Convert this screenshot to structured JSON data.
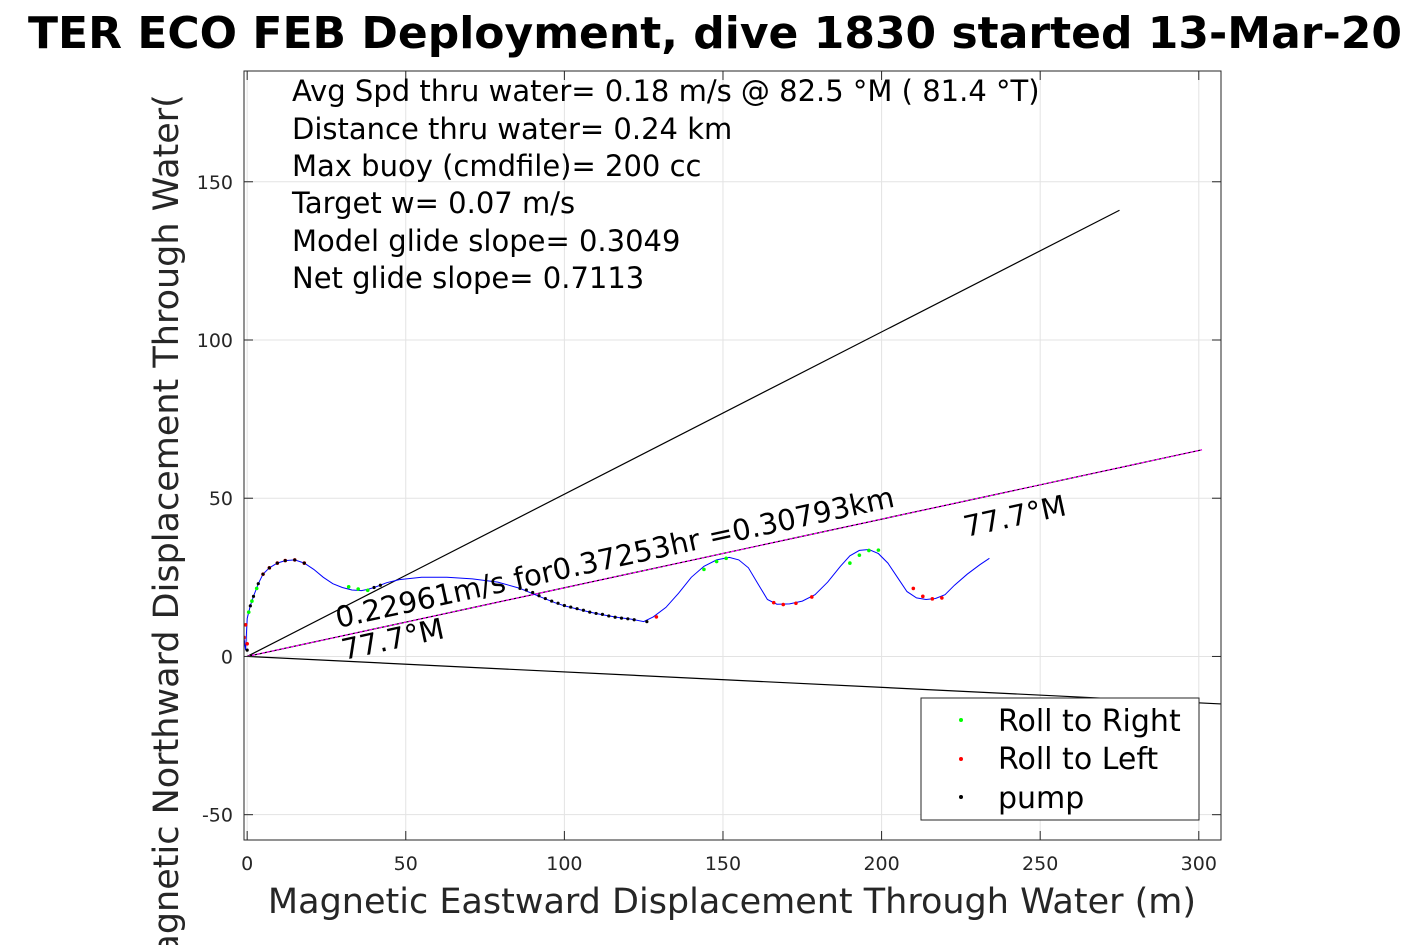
{
  "chart_data": {
    "type": "scatter",
    "title": "TER ECO FEB Deployment, dive 1830 started 13-Mar-20",
    "xlabel": "Magnetic Eastward Displacement Through Water (m)",
    "ylabel": "Magnetic Northward Displacement Through Water(",
    "xlim": [
      -1,
      307
    ],
    "ylim": [
      -58,
      185
    ],
    "xticks": [
      0,
      50,
      100,
      150,
      200,
      250,
      300
    ],
    "yticks": [
      -50,
      0,
      50,
      100,
      150
    ],
    "grid": true,
    "annotations": [
      "Avg Spd thru water=  0.18 m/s @  82.5 °M ( 81.4 °T)",
      "Distance thru water=  0.24 km",
      "Max buoy (cmdfile)= 200 cc",
      "Target w= 0.07 m/s",
      "Model glide slope= 0.3049",
      "Net glide slope= 0.7113"
    ],
    "line_labels": {
      "speed": "0.22961m/s for0.37253hr =0.30793km",
      "heading_lower": "77.7°M",
      "heading_upper": "77.7°M"
    },
    "reference_lines": [
      {
        "color": "#000000",
        "points": [
          [
            0,
            0
          ],
          [
            275,
            141
          ]
        ]
      },
      {
        "color": "#000000",
        "points": [
          [
            0,
            0
          ],
          [
            307,
            -15
          ]
        ]
      },
      {
        "color": "#000000",
        "points": [
          [
            0,
            0
          ],
          [
            301,
            65.3
          ]
        ]
      },
      {
        "color": "#ff00ff",
        "dash": true,
        "points": [
          [
            0,
            0
          ],
          [
            301,
            65.3
          ]
        ]
      }
    ],
    "track": {
      "color": "#0000ff",
      "x": [
        -1,
        -0.5,
        0,
        1,
        2,
        3.5,
        5,
        7,
        9.5,
        12,
        15,
        18,
        21,
        24,
        27,
        30,
        33,
        36,
        38,
        40,
        42,
        44,
        48,
        55,
        63,
        71,
        79,
        86,
        92,
        97,
        100,
        104,
        108,
        112,
        117,
        121,
        125,
        128,
        132,
        136,
        140,
        144,
        148,
        152,
        155,
        158,
        161,
        164,
        167,
        171,
        175,
        179,
        183,
        187,
        190,
        193,
        196,
        199,
        202,
        205,
        208,
        211,
        214,
        217,
        220,
        223,
        227,
        231,
        234
      ],
      "y": [
        6,
        2,
        12,
        16,
        19,
        23,
        26,
        28,
        29.5,
        30.3,
        30.5,
        29.5,
        27.5,
        25,
        23,
        21.8,
        21,
        20.8,
        21.2,
        21.8,
        22.5,
        23.3,
        24.3,
        25,
        25,
        24.5,
        23.5,
        21.5,
        19,
        17,
        16,
        15,
        14,
        13.2,
        12.3,
        11.8,
        11,
        12.5,
        15.5,
        20,
        25,
        28.5,
        30.5,
        31.3,
        30.5,
        28,
        23,
        18,
        16.5,
        16.6,
        17.5,
        19.5,
        23.5,
        28.5,
        31.8,
        33.5,
        33.8,
        32.5,
        29.5,
        25,
        20.5,
        18.5,
        18,
        18.3,
        19.5,
        22.5,
        26,
        29,
        31
      ]
    },
    "roll_right": {
      "color": "#00ff00",
      "x": [
        0.5,
        1.5,
        3,
        32,
        35,
        38,
        144,
        148,
        151,
        190,
        193,
        196,
        199
      ],
      "y": [
        14,
        17.5,
        21.5,
        22,
        21.3,
        20.9,
        27.5,
        30,
        31,
        29.5,
        32,
        33.5,
        33.6
      ]
    },
    "roll_left": {
      "color": "#ff0000",
      "x": [
        -1,
        -0.5,
        0,
        5,
        7,
        9.5,
        12,
        15,
        18,
        129,
        166,
        169,
        173,
        178,
        210,
        213,
        216,
        219
      ],
      "y": [
        6,
        10,
        4,
        26,
        28,
        29.5,
        30.3,
        30.5,
        29.5,
        12.5,
        17,
        16.4,
        16.8,
        18.8,
        21.5,
        19,
        18.2,
        18.5
      ]
    },
    "pump": {
      "color": "#000000",
      "x": [
        0,
        1,
        2,
        3.5,
        5,
        7,
        9.5,
        12,
        15,
        18,
        40,
        42,
        86,
        88,
        90,
        92,
        94,
        96,
        98,
        100,
        102,
        104,
        106,
        108,
        110,
        112,
        114,
        116,
        118,
        120,
        122,
        126
      ],
      "y": [
        2,
        16,
        19,
        23,
        26,
        28,
        29.5,
        30.3,
        30.5,
        29.5,
        21.8,
        22.5,
        21.5,
        21,
        20.2,
        19.2,
        18.3,
        17.5,
        16.8,
        16.1,
        15.6,
        15.1,
        14.6,
        14,
        13.6,
        13.3,
        12.8,
        12.4,
        12.1,
        11.9,
        11.6,
        11
      ]
    },
    "legend": {
      "position": "bottom-right",
      "entries": [
        {
          "label": "Roll to Right",
          "color": "#00ff00"
        },
        {
          "label": "Roll to Left",
          "color": "#ff0000"
        },
        {
          "label": "pump",
          "color": "#000000"
        }
      ]
    }
  }
}
